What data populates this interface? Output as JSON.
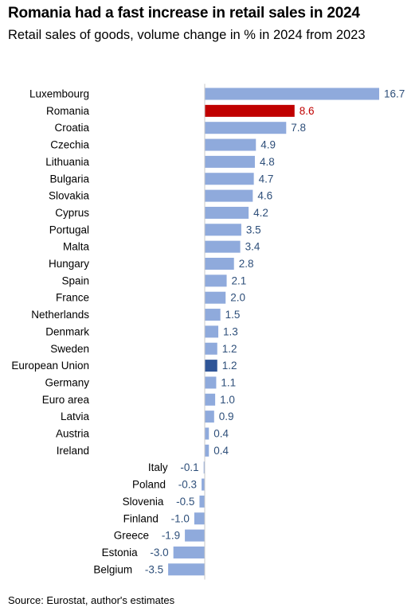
{
  "title": "Romania had a fast increase in retail sales in 2024",
  "subtitle": "Retail sales of goods, volume change in % in 2024 from 2023",
  "source": "Source: Eurostat, author's estimates",
  "colors": {
    "default_bar": "#8faadc",
    "highlight_bar": "#c00000",
    "aggregate_bar": "#2f5597",
    "axis_line": "#c8c8c8",
    "value_text": "#2e4f7a"
  },
  "chart_data": {
    "type": "bar",
    "orientation": "horizontal",
    "categories": [
      "Luxembourg",
      "Romania",
      "Croatia",
      "Czechia",
      "Lithuania",
      "Bulgaria",
      "Slovakia",
      "Cyprus",
      "Portugal",
      "Malta",
      "Hungary",
      "Spain",
      "France",
      "Netherlands",
      "Denmark",
      "Sweden",
      "European Union",
      "Germany",
      "Euro area",
      "Latvia",
      "Austria",
      "Ireland",
      "Italy",
      "Poland",
      "Slovenia",
      "Finland",
      "Greece",
      "Estonia",
      "Belgium"
    ],
    "values": [
      16.7,
      8.6,
      7.8,
      4.9,
      4.8,
      4.7,
      4.6,
      4.2,
      3.5,
      3.4,
      2.8,
      2.1,
      2.0,
      1.5,
      1.3,
      1.2,
      1.2,
      1.1,
      1.0,
      0.9,
      0.4,
      0.4,
      -0.1,
      -0.3,
      -0.5,
      -1.0,
      -1.9,
      -3.0,
      -3.5
    ],
    "value_labels": [
      "16.7",
      "8.6",
      "7.8",
      "4.9",
      "4.8",
      "4.7",
      "4.6",
      "4.2",
      "3.5",
      "3.4",
      "2.8",
      "2.1",
      "2.0",
      "1.5",
      "1.3",
      "1.2",
      "1.2",
      "1.1",
      "1.0",
      "0.9",
      "0.4",
      "0.4",
      "-0.1",
      "-0.3",
      "-0.5",
      "-1.0",
      "-1.9",
      "-3.0",
      "-3.5"
    ],
    "highlight": {
      "Romania": "highlight",
      "European Union": "aggregate"
    },
    "xlim": [
      -3.5,
      16.7
    ],
    "grid": false,
    "legend": "none",
    "data_labels": true
  }
}
